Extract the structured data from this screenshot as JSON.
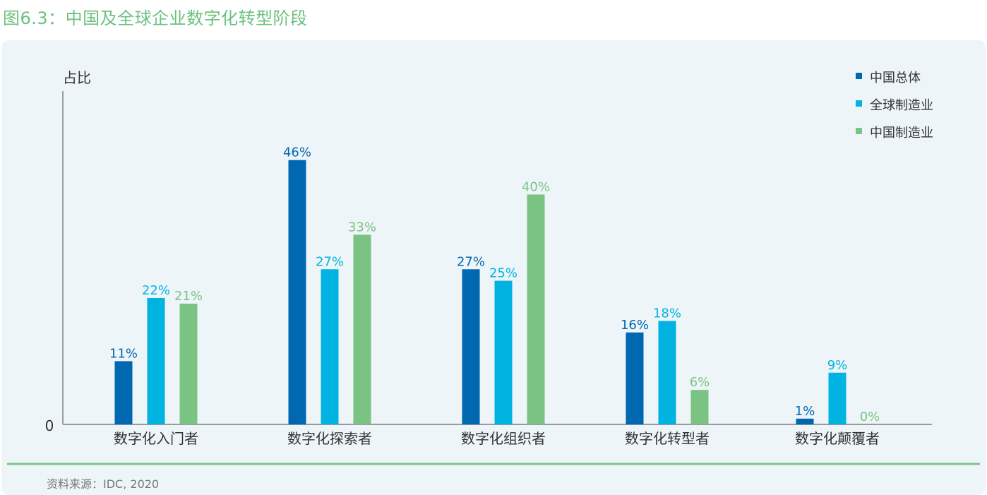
{
  "figure_title": "图6.3：中国及全球企业数字化转型阶段",
  "source_note": "资料来源：IDC, 2020",
  "colors": {
    "accent_green": "#6cc17e",
    "panel_bg": "#eef5f9",
    "axis": "#666666",
    "footer_line": "#7cc58a"
  },
  "chart_data": {
    "type": "bar",
    "title": "",
    "ylabel": "占比",
    "xlabel": "",
    "y_tick_labels": [
      "0"
    ],
    "ylim": [
      0,
      0.58
    ],
    "grid": false,
    "legend_position": "top-right",
    "categories": [
      "数字化入门者",
      "数字化探索者",
      "数字化组织者",
      "数字化转型者",
      "数字化颠覆者"
    ],
    "series": [
      {
        "name": "中国总体",
        "color": "#0067b1",
        "values": [
          0.11,
          0.46,
          0.27,
          0.16,
          0.01
        ],
        "labels": [
          "11%",
          "46%",
          "27%",
          "16%",
          "1%"
        ]
      },
      {
        "name": "全球制造业",
        "color": "#00b3e1",
        "values": [
          0.22,
          0.27,
          0.25,
          0.18,
          0.09
        ],
        "labels": [
          "22%",
          "27%",
          "25%",
          "18%",
          "9%"
        ]
      },
      {
        "name": "中国制造业",
        "color": "#7ac383",
        "values": [
          0.21,
          0.33,
          0.4,
          0.06,
          0.0
        ],
        "labels": [
          "21%",
          "33%",
          "40%",
          "6%",
          "0%"
        ]
      }
    ]
  }
}
